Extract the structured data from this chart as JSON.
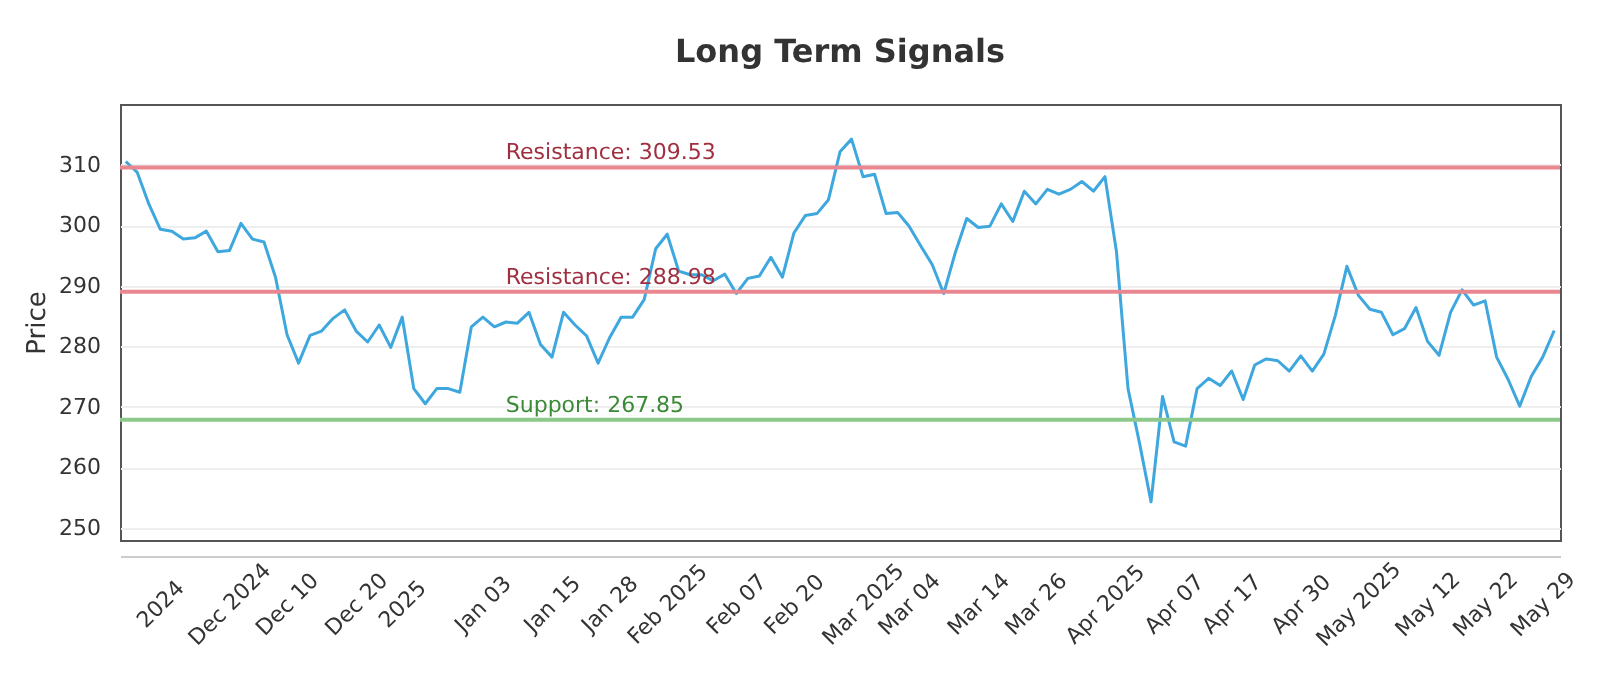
{
  "chart_data": {
    "type": "line",
    "title": "Long Term Signals",
    "ylabel": "Price",
    "categories": [
      null,
      null,
      null,
      "2024",
      null,
      null,
      null,
      null,
      null,
      "Dec 2024",
      null,
      null,
      null,
      null,
      "Dec 10",
      null,
      null,
      null,
      null,
      null,
      "Dec 20",
      null,
      null,
      null,
      "2025",
      null,
      null,
      null,
      null,
      null,
      null,
      "Jan 03",
      null,
      null,
      null,
      null,
      null,
      "Jan 15",
      null,
      null,
      null,
      null,
      "Jan 28",
      null,
      null,
      null,
      null,
      "Feb 2025",
      null,
      null,
      null,
      null,
      null,
      "Feb 07",
      null,
      null,
      null,
      null,
      "Feb 20",
      null,
      null,
      null,
      null,
      null,
      "Mar 2025",
      null,
      null,
      null,
      "Mar 04",
      null,
      null,
      null,
      null,
      null,
      "Mar 14",
      null,
      null,
      null,
      null,
      "Mar 26",
      null,
      null,
      null,
      null,
      null,
      "Apr 2025",
      null,
      null,
      null,
      null,
      null,
      "Apr 07",
      null,
      null,
      null,
      null,
      "Apr 17",
      null,
      null,
      null,
      null,
      null,
      "Apr 30",
      null,
      null,
      null,
      null,
      "May 2025",
      null,
      null,
      null,
      null,
      null,
      "May 12",
      null,
      null,
      null,
      null,
      "May 22",
      null,
      null,
      null,
      null,
      "May 29",
      null
    ],
    "series": [
      {
        "color": "#3ea8de",
        "values": [
          310.5,
          308.7,
          303.5,
          299.3,
          299,
          297.7,
          297.9,
          299,
          295.6,
          295.8,
          300.3,
          297.7,
          297.2,
          291.4,
          281.9,
          277.2,
          281.8,
          282.5,
          284.6,
          286,
          282.5,
          280.7,
          283.5,
          279.8,
          284.8,
          273,
          270.5,
          273,
          273,
          272.4,
          283.2,
          284.8,
          283.2,
          284,
          283.8,
          285.6,
          280.3,
          278.2,
          285.6,
          283.5,
          281.7,
          277.2,
          281.4,
          284.8,
          284.8,
          287.7,
          296.1,
          298.5,
          292.4,
          291.8,
          291.8,
          290.8,
          291.9,
          288.7,
          291.2,
          291.6,
          294.7,
          291.4,
          298.7,
          301.6,
          301.9,
          304.2,
          312.1,
          314.2,
          308,
          308.4,
          301.9,
          302.1,
          299.8,
          296.6,
          293.5,
          288.7,
          295.4,
          301.1,
          299.6,
          299.8,
          303.5,
          300.6,
          305.6,
          303.5,
          305.9,
          305.1,
          305.9,
          307.2,
          305.6,
          308,
          295.6,
          273,
          264,
          254.3,
          271.7,
          264.2,
          263.5,
          273,
          274.7,
          273.5,
          275.9,
          271.2,
          276.9,
          277.9,
          277.6,
          275.9,
          278.4,
          275.9,
          278.7,
          285.1,
          293.2,
          288.4,
          286.1,
          285.6,
          281.9,
          282.9,
          286.4,
          280.8,
          278.5,
          285.6,
          289.3,
          286.8,
          287.5,
          278.2,
          274.5,
          270.1,
          275,
          278.2,
          282.6
        ]
      }
    ],
    "ylim": [
      248,
      320
    ],
    "yticks": [
      250,
      260,
      270,
      280,
      290,
      300,
      310
    ],
    "grid": "y",
    "ref_lines": [
      {
        "axis": "y",
        "value": 309.53,
        "label": "Resistance: 309.53",
        "color": "#e8878f"
      },
      {
        "axis": "y",
        "value": 288.98,
        "label": "Resistance: 288.98",
        "color": "#e8878f"
      },
      {
        "axis": "y",
        "value": 267.85,
        "label": "Support: 267.85",
        "color": "#8cc98a"
      }
    ]
  }
}
